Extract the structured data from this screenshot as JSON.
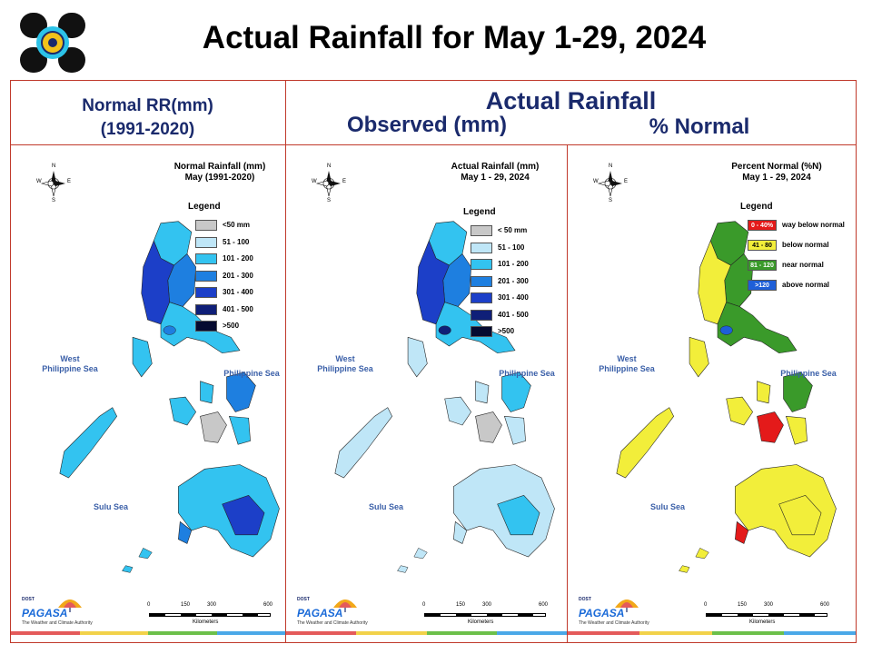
{
  "title": "Actual Rainfall for May 1-29, 2024",
  "headers": {
    "normal_line1": "Normal RR(mm)",
    "normal_line2": "(1991-2020)",
    "actual": "Actual Rainfall",
    "observed": "Observed (mm)",
    "percent_normal": "% Normal"
  },
  "panels": [
    {
      "map_title_1": "Normal Rainfall (mm)",
      "map_title_2": "May (1991-2020)",
      "legend_title": "Legend",
      "legend": [
        {
          "label": "<50 mm",
          "color": "#c8c8c8"
        },
        {
          "label": "51 - 100",
          "color": "#bfe6f7"
        },
        {
          "label": "101 - 200",
          "color": "#33c3f0"
        },
        {
          "label": "201 - 300",
          "color": "#1e7fe0"
        },
        {
          "label": "301 - 400",
          "color": "#1c3fc8"
        },
        {
          "label": "401 - 500",
          "color": "#0f1f78"
        },
        {
          "label": ">500",
          "color": "#050a30"
        }
      ],
      "seas": {
        "west": "West\nPhilippine Sea",
        "east": "Philippine Sea",
        "south": "Sulu Sea"
      }
    },
    {
      "map_title_1": "Actual Rainfall (mm)",
      "map_title_2": "May 1 - 29, 2024",
      "legend_title": "Legend",
      "legend": [
        {
          "label": "< 50 mm",
          "color": "#c8c8c8"
        },
        {
          "label": "51 - 100",
          "color": "#bfe6f7"
        },
        {
          "label": "101 - 200",
          "color": "#33c3f0"
        },
        {
          "label": "201 - 300",
          "color": "#1e7fe0"
        },
        {
          "label": "301 - 400",
          "color": "#1c3fc8"
        },
        {
          "label": "401 - 500",
          "color": "#0f1f78"
        },
        {
          "label": ">500",
          "color": "#050a30"
        }
      ],
      "seas": {
        "west": "West\nPhilippine Sea",
        "east": "Philippine Sea",
        "south": "Sulu Sea"
      }
    },
    {
      "map_title_1": "Percent Normal (%N)",
      "map_title_2": "May 1 - 29, 2024",
      "legend_title": "Legend",
      "legend": [
        {
          "swatch": "0 - 40%",
          "label": "way below normal",
          "color": "#e41a1a"
        },
        {
          "swatch": "41 - 80",
          "label": "below normal",
          "color": "#f2ee3a"
        },
        {
          "swatch": "81 - 120",
          "label": "near normal",
          "color": "#3a9a2a"
        },
        {
          "swatch": ">120",
          "label": "above normal",
          "color": "#1e5fd8"
        }
      ],
      "seas": {
        "west": "West\nPhilippine Sea",
        "east": "Philippine Sea",
        "south": "Sulu Sea"
      }
    }
  ],
  "compass": {
    "n": "N",
    "s": "S",
    "e": "E",
    "w": "W"
  },
  "scale": {
    "ticks": [
      "0",
      "150",
      "300",
      "600"
    ],
    "unit": "Kilometers"
  },
  "pagasa": {
    "dost": "DOST",
    "brand": "PAGASA",
    "sub": "The Weather and Climate Authority"
  },
  "footer_colors": [
    "#e45a5a",
    "#f2d24a",
    "#6cc04a",
    "#4aa8e8"
  ]
}
